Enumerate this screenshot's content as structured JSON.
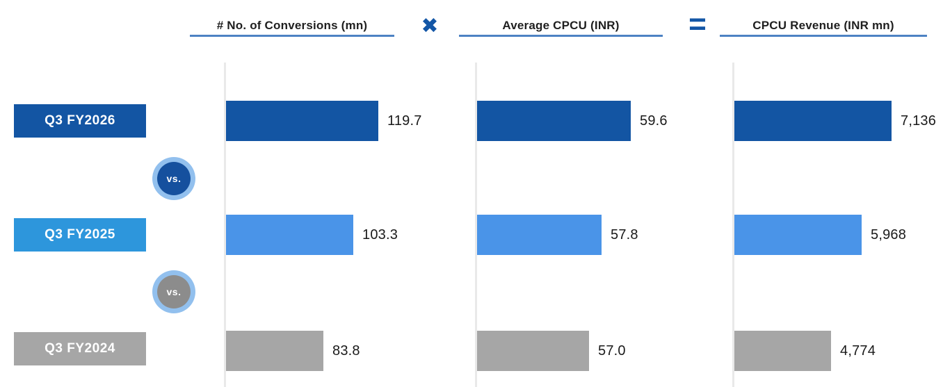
{
  "chart_data": {
    "type": "bar",
    "orientation": "horizontal",
    "categories": [
      "Q3 FY2026",
      "Q3 FY2025",
      "Q3 FY2024"
    ],
    "category_bar_colors": [
      "#1355a3",
      "#4a94e8",
      "#a6a6a6"
    ],
    "category_label_colors": [
      "#1355a3",
      "#2d96dc",
      "#a6a6a6"
    ],
    "vs_label": "vs.",
    "vs_badge_ring_color": "#92c0ee",
    "vs_badge_fill_colors": [
      "#15509e",
      "#8c8c8c"
    ],
    "operators": [
      "✖",
      "="
    ],
    "operator_color": "#1356a6",
    "underline_color": "#4d82c3",
    "axis_line_color": "#e9e9e9",
    "grid": "off",
    "legend": "none",
    "columns": [
      {
        "title": "# No. of Conversions (mn)",
        "values": [
          119.7,
          103.3,
          83.8
        ],
        "labels": [
          "119.7",
          "103.3",
          "83.8"
        ],
        "xlim": [
          20,
          170
        ]
      },
      {
        "title": "Average CPCU (INR)",
        "values": [
          59.6,
          57.8,
          57.0
        ],
        "labels": [
          "59.6",
          "57.8",
          "57.0"
        ],
        "xlim": [
          50,
          65
        ]
      },
      {
        "title": "CPCU Revenue (INR mn)",
        "values": [
          7136,
          5968,
          4774
        ],
        "labels": [
          "7,136",
          "5,968",
          "4,774"
        ],
        "xlim": [
          1000,
          9000
        ]
      }
    ]
  }
}
